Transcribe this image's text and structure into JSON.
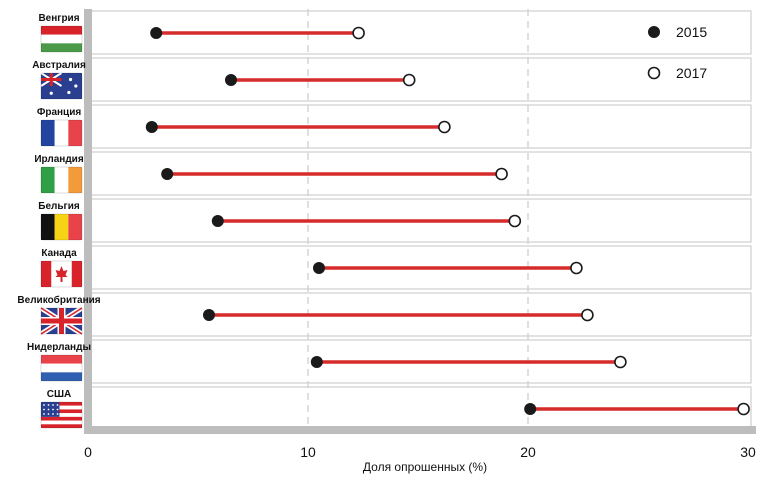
{
  "chart_data": {
    "type": "dumbbell",
    "xlabel": "Доля опрошенных (%)",
    "xlim": [
      0,
      30
    ],
    "x_ticks": [
      "0",
      "10",
      "20",
      "30"
    ],
    "grid": "vertical dashed at 10, 20",
    "legend_position": "top-right",
    "legend": [
      {
        "name": "2015",
        "marker": "filled-circle"
      },
      {
        "name": "2017",
        "marker": "open-circle"
      }
    ],
    "categories": [
      "Венгрия",
      "Австралия",
      "Франция",
      "Ирландия",
      "Бельгия",
      "Канада",
      "Великобритания",
      "Нидерланды",
      "США"
    ],
    "series": [
      {
        "name": "2015",
        "values": [
          3.1,
          6.5,
          2.9,
          3.6,
          5.9,
          10.5,
          5.5,
          10.4,
          20.1
        ]
      },
      {
        "name": "2017",
        "values": [
          12.3,
          14.6,
          16.2,
          18.8,
          19.4,
          22.2,
          22.7,
          24.2,
          29.8
        ]
      }
    ],
    "flags": [
      "hungary",
      "australia",
      "france",
      "ireland",
      "belgium",
      "canada",
      "uk",
      "netherlands",
      "usa"
    ],
    "colors": {
      "connector": "#d62b2b",
      "row_border": "#c6c6c6",
      "axis": "#bdbdbd",
      "grid": "#cccccc",
      "marker": "#1a1a1a"
    }
  }
}
